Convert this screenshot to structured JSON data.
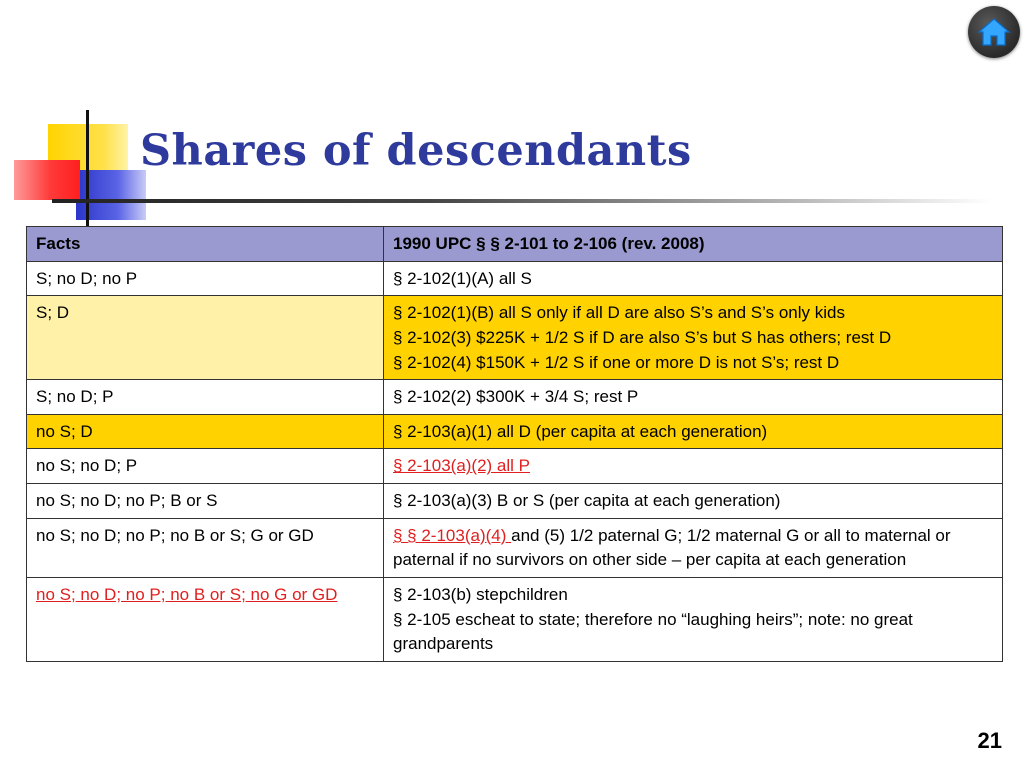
{
  "slide": {
    "title": "Shares of descendants",
    "page_number": "21",
    "home_icon": "home-icon"
  },
  "table": {
    "headers": [
      "Facts",
      "1990 UPC  §  §  2-101 to 2-106  (rev. 2008)"
    ],
    "rows": [
      {
        "facts": "S; no D; no P",
        "rule_lines": [
          " § 2-102(1)(A) all S"
        ]
      },
      {
        "facts": "S; D",
        "rule_lines": [
          " § 2-102(1)(B) all S only if all D are also S’s and S’s only kids",
          " § 2-102(3) $225K + 1/2 S if D are also S’s but S has others; rest D",
          " § 2-102(4) $150K + 1/2 S if one or more D is not S’s; rest D"
        ]
      },
      {
        "facts": "S; no D; P",
        "rule_lines": [
          " § 2-102(2) $300K + 3/4 S; rest P"
        ]
      },
      {
        "facts": "no S; D",
        "rule_lines": [
          " § 2-103(a)(1) all D (per capita at each generation)"
        ]
      },
      {
        "facts": "no S; no D; P",
        "rule_link": " § 2-103(a)(2) all P"
      },
      {
        "facts": "no S; no D; no P; B or S",
        "rule_lines": [
          " § 2-103(a)(3) B or S (per capita at each generation)"
        ]
      },
      {
        "facts": "no S; no D; no P; no B or S; G or GD",
        "rule_link": "  §  § 2-103(a)(4) ",
        "rule_rest": "and (5) 1/2 paternal G; 1/2 maternal G or all to maternal or paternal if no survivors on other side – per capita at each generation"
      },
      {
        "facts_link": "no S; no D; no P; no B or S; no G or GD",
        "rule_lines": [
          " § 2-103(b) stepchildren",
          " § 2-105 escheat to state; therefore no “laughing heirs”; note: no great grandparents"
        ]
      }
    ]
  },
  "colors": {
    "title": "#2e3a9c",
    "header_bg": "#9a9ad0",
    "highlight": "#ffd200",
    "highlight_light": "#fff2a8",
    "link_red": "#e02020"
  }
}
